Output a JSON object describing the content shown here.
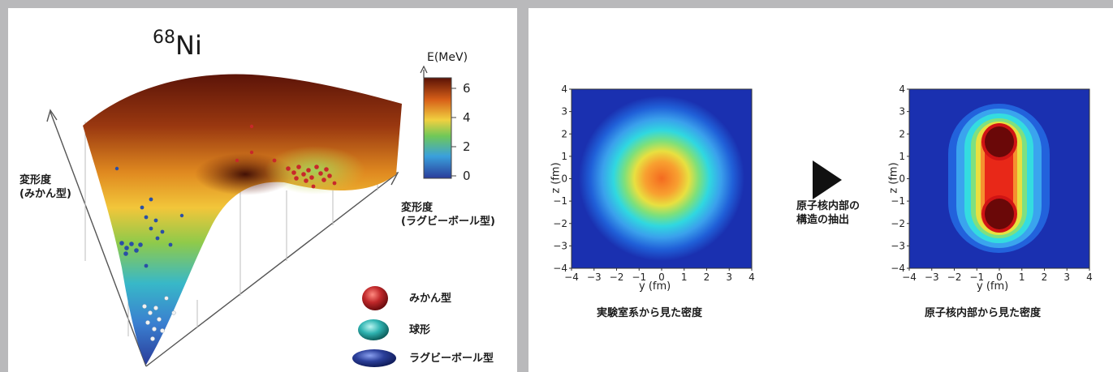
{
  "left": {
    "title_mass": "68",
    "title_element": "Ni",
    "axis_left_label": "変形度\n(みかん型)",
    "axis_right_label": "変形度\n(ラグビーボール型)",
    "colorbar": {
      "label": "E(MeV)",
      "ticks": [
        "6",
        "4",
        "2",
        "0"
      ]
    },
    "legend": [
      {
        "label": "みかん型",
        "color": "#c0282a"
      },
      {
        "label": "球形",
        "color": "#2fb3b1"
      },
      {
        "label": "ラグビーボール型",
        "color": "#2b3f9a"
      }
    ]
  },
  "right": {
    "plot1_caption": "実験室系から見た密度",
    "plot2_caption": "原子核内部から見た密度",
    "arrow_caption": "原子核内部の\n構造の抽出",
    "xlabel": "y (fm)",
    "ylabel": "z (fm)",
    "x_ticks": [
      "−4",
      "−3",
      "−2",
      "−1",
      "0",
      "1",
      "2",
      "3",
      "4"
    ],
    "y_ticks": [
      "4",
      "3",
      "2",
      "1",
      "0",
      "−1",
      "−2",
      "−3",
      "−4"
    ]
  },
  "chart_data": [
    {
      "type": "heatmap",
      "title": "",
      "xlabel": "y (fm)",
      "ylabel": "z (fm)",
      "xlim": [
        -4,
        4
      ],
      "ylim": [
        -4,
        4
      ],
      "caption": "実験室系から見た密度",
      "features": [
        {
          "shape": "single spherical peak",
          "center": [
            0,
            0
          ]
        }
      ]
    },
    {
      "type": "heatmap",
      "title": "",
      "xlabel": "y (fm)",
      "ylabel": "z (fm)",
      "xlim": [
        -4,
        4
      ],
      "ylim": [
        -4,
        4
      ],
      "caption": "原子核内部から見た密度",
      "features": [
        {
          "shape": "peak",
          "center": [
            0,
            1.5
          ]
        },
        {
          "shape": "peak",
          "center": [
            0,
            -1.5
          ]
        }
      ]
    }
  ]
}
